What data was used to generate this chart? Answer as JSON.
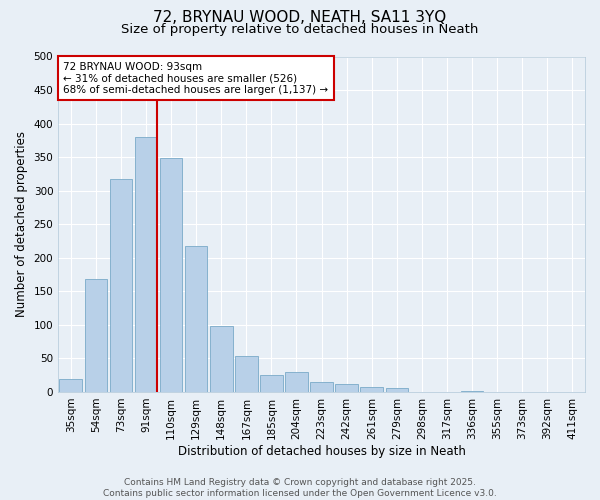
{
  "title": "72, BRYNAU WOOD, NEATH, SA11 3YQ",
  "subtitle": "Size of property relative to detached houses in Neath",
  "xlabel": "Distribution of detached houses by size in Neath",
  "ylabel": "Number of detached properties",
  "bar_labels": [
    "35sqm",
    "54sqm",
    "73sqm",
    "91sqm",
    "110sqm",
    "129sqm",
    "148sqm",
    "167sqm",
    "185sqm",
    "204sqm",
    "223sqm",
    "242sqm",
    "261sqm",
    "279sqm",
    "298sqm",
    "317sqm",
    "336sqm",
    "355sqm",
    "373sqm",
    "392sqm",
    "411sqm"
  ],
  "bar_values": [
    19,
    168,
    318,
    380,
    349,
    217,
    98,
    54,
    26,
    30,
    15,
    12,
    8,
    6,
    0,
    0,
    1,
    0,
    0,
    0,
    0
  ],
  "bar_color": "#b8d0e8",
  "bar_edge_color": "#7aaac8",
  "background_color": "#e8eff6",
  "grid_color": "#ffffff",
  "vline_x_index": 3,
  "vline_color": "#cc0000",
  "annotation_line1": "72 BRYNAU WOOD: 93sqm",
  "annotation_line2": "← 31% of detached houses are smaller (526)",
  "annotation_line3": "68% of semi-detached houses are larger (1,137) →",
  "annotation_box_color": "#ffffff",
  "annotation_box_edge_color": "#cc0000",
  "ylim": [
    0,
    500
  ],
  "yticks": [
    0,
    50,
    100,
    150,
    200,
    250,
    300,
    350,
    400,
    450,
    500
  ],
  "footer_line1": "Contains HM Land Registry data © Crown copyright and database right 2025.",
  "footer_line2": "Contains public sector information licensed under the Open Government Licence v3.0.",
  "title_fontsize": 11,
  "subtitle_fontsize": 9.5,
  "axis_label_fontsize": 8.5,
  "tick_fontsize": 7.5,
  "annotation_fontsize": 7.5,
  "footer_fontsize": 6.5
}
